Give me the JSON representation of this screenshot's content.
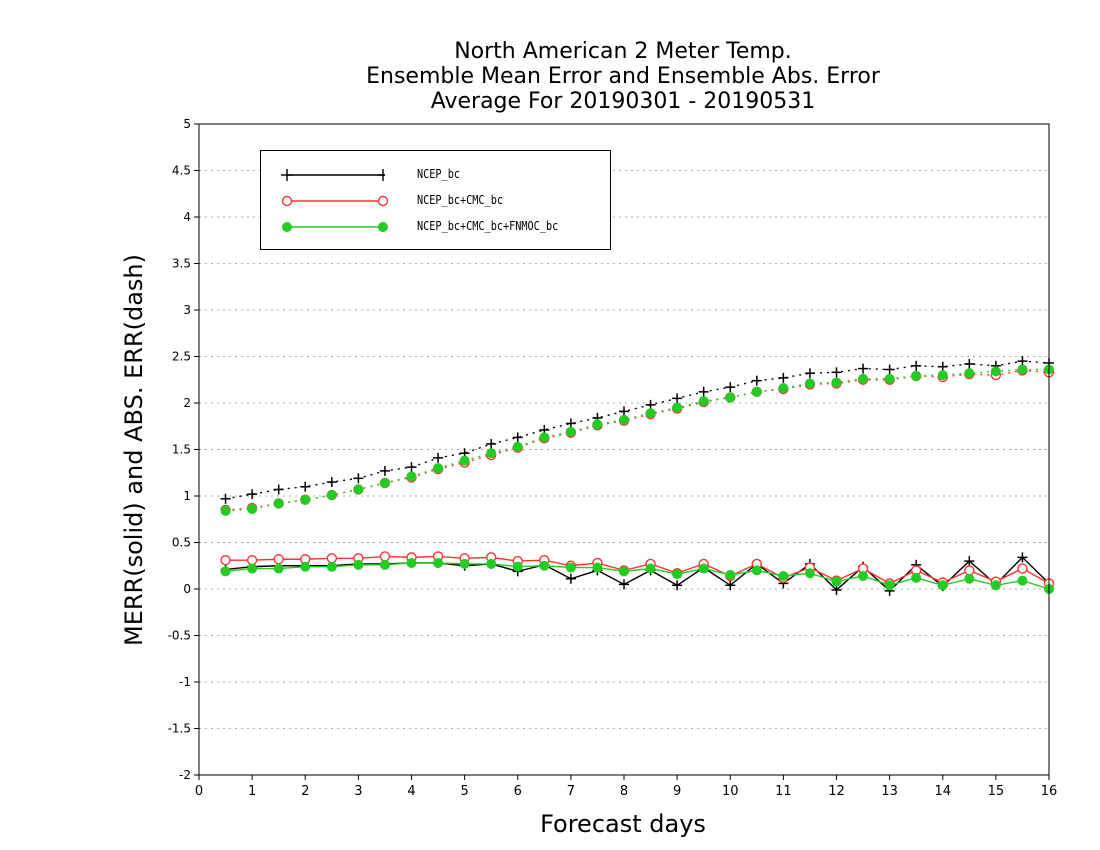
{
  "title_lines": [
    "North American 2 Meter Temp.",
    "Ensemble Mean Error and Ensemble Abs. Error",
    "Average For 20190301 - 20190531"
  ],
  "chart_data": {
    "type": "line",
    "title": "North American 2 Meter Temp. Ensemble Mean Error and Ensemble Abs. Error Average For 20190301 - 20190531",
    "xlabel": "Forecast days",
    "ylabel": "MERR(solid) and ABS. ERR(dash)",
    "xlim": [
      0,
      16
    ],
    "ylim": [
      -2,
      5
    ],
    "x_ticks": [
      0,
      1,
      2,
      3,
      4,
      5,
      6,
      7,
      8,
      9,
      10,
      11,
      12,
      13,
      14,
      15,
      16
    ],
    "y_ticks": [
      -2,
      -1.5,
      -1,
      -0.5,
      0,
      0.5,
      1,
      1.5,
      2,
      2.5,
      3,
      3.5,
      4,
      4.5,
      5
    ],
    "y_tick_labels": [
      "-2",
      "-1.5",
      "-1",
      "-0.5",
      "0",
      "0.5",
      "1",
      "1.5",
      "2",
      "2.5",
      "3",
      "3.5",
      "4",
      "4.5",
      "5"
    ],
    "grid": "horizontal dotted",
    "legend_position": "top-left",
    "x": [
      0.5,
      1,
      1.5,
      2,
      2.5,
      3,
      3.5,
      4,
      4.5,
      5,
      5.5,
      6,
      6.5,
      7,
      7.5,
      8,
      8.5,
      9,
      9.5,
      10,
      10.5,
      11,
      11.5,
      12,
      12.5,
      13,
      13.5,
      14,
      14.5,
      15,
      15.5,
      16
    ],
    "series": [
      {
        "name": "NCEP_bc",
        "color": "#000000",
        "marker": "plus",
        "merr": [
          0.21,
          0.24,
          0.25,
          0.25,
          0.25,
          0.27,
          0.27,
          0.28,
          0.28,
          0.25,
          0.27,
          0.19,
          0.26,
          0.11,
          0.2,
          0.05,
          0.2,
          0.04,
          0.23,
          0.04,
          0.27,
          0.06,
          0.27,
          -0.01,
          0.24,
          -0.02,
          0.26,
          0.03,
          0.3,
          0.05,
          0.34,
          0.06
        ],
        "abs_err": [
          0.97,
          1.02,
          1.07,
          1.1,
          1.15,
          1.19,
          1.27,
          1.31,
          1.41,
          1.46,
          1.56,
          1.63,
          1.71,
          1.78,
          1.84,
          1.91,
          1.98,
          2.05,
          2.12,
          2.17,
          2.24,
          2.27,
          2.32,
          2.33,
          2.37,
          2.36,
          2.4,
          2.39,
          2.42,
          2.4,
          2.45,
          2.43
        ]
      },
      {
        "name": "NCEP_bc+CMC_bc",
        "color": "#ff3333",
        "marker": "open-circle",
        "merr": [
          0.31,
          0.31,
          0.32,
          0.32,
          0.33,
          0.33,
          0.35,
          0.34,
          0.35,
          0.33,
          0.34,
          0.3,
          0.31,
          0.25,
          0.28,
          0.2,
          0.27,
          0.17,
          0.27,
          0.14,
          0.27,
          0.12,
          0.23,
          0.09,
          0.22,
          0.06,
          0.2,
          0.07,
          0.2,
          0.08,
          0.22,
          0.06
        ],
        "abs_err": [
          0.85,
          0.87,
          0.92,
          0.96,
          1.01,
          1.07,
          1.14,
          1.2,
          1.29,
          1.36,
          1.44,
          1.52,
          1.62,
          1.68,
          1.76,
          1.81,
          1.88,
          1.94,
          2.01,
          2.06,
          2.12,
          2.15,
          2.2,
          2.21,
          2.25,
          2.25,
          2.29,
          2.28,
          2.31,
          2.3,
          2.35,
          2.33
        ]
      },
      {
        "name": "NCEP_bc+CMC_bc+FNMOC_bc",
        "color": "#22cc22",
        "marker": "filled-circle",
        "merr": [
          0.19,
          0.22,
          0.22,
          0.24,
          0.24,
          0.26,
          0.26,
          0.28,
          0.28,
          0.27,
          0.27,
          0.24,
          0.25,
          0.23,
          0.23,
          0.19,
          0.22,
          0.16,
          0.22,
          0.15,
          0.2,
          0.14,
          0.17,
          0.08,
          0.14,
          0.04,
          0.12,
          0.04,
          0.11,
          0.04,
          0.09,
          0.0
        ],
        "abs_err": [
          0.84,
          0.86,
          0.92,
          0.96,
          1.01,
          1.07,
          1.14,
          1.21,
          1.3,
          1.38,
          1.46,
          1.53,
          1.63,
          1.69,
          1.77,
          1.82,
          1.89,
          1.95,
          2.02,
          2.06,
          2.12,
          2.16,
          2.21,
          2.22,
          2.26,
          2.26,
          2.29,
          2.3,
          2.32,
          2.34,
          2.36,
          2.36
        ]
      }
    ]
  }
}
